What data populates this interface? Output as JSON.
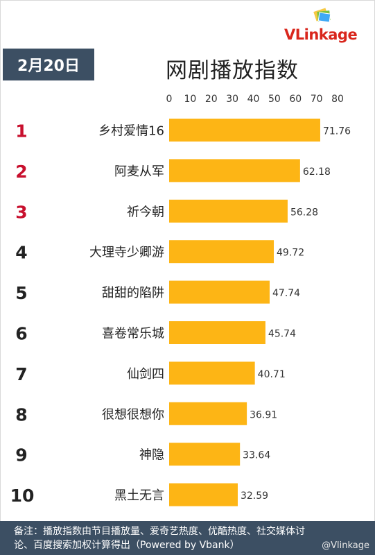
{
  "brand": {
    "logo_v": "V",
    "logo_rest": "Linkage",
    "watermark": "@Vlinkage"
  },
  "header": {
    "date": "2月20日",
    "title": "网剧播放指数"
  },
  "footer": {
    "note_line1": "备注：播放指数由节目播放量、爱奇艺热度、优酷热度、社交媒体讨",
    "note_line2": "论、百度搜索加权计算得出（Powered by Vbank）"
  },
  "colors": {
    "bar": "#FDB515",
    "top_rank": "#C8102E",
    "rank": "#222222",
    "header_bg": "#3C4F63"
  },
  "chart_data": {
    "type": "bar",
    "orientation": "horizontal",
    "title": "网剧播放指数",
    "xlim": [
      0,
      80
    ],
    "x_ticks": [
      0,
      10,
      20,
      30,
      40,
      50,
      60,
      70,
      80
    ],
    "x_axis_position": "top",
    "grid": false,
    "ranks": [
      "1",
      "2",
      "3",
      "4",
      "5",
      "6",
      "7",
      "8",
      "9",
      "10"
    ],
    "categories": [
      "乡村爱情16",
      "阿麦从军",
      "祈今朝",
      "大理寺少卿游",
      "甜甜的陷阱",
      "喜卷常乐城",
      "仙剑四",
      "很想很想你",
      "神隐",
      "黑土无言"
    ],
    "values": [
      71.76,
      62.18,
      56.28,
      49.72,
      47.74,
      45.74,
      40.71,
      36.91,
      33.64,
      32.59
    ],
    "value_labels": [
      "71.76",
      "62.18",
      "56.28",
      "49.72",
      "47.74",
      "45.74",
      "40.71",
      "36.91",
      "33.64",
      "32.59"
    ]
  }
}
